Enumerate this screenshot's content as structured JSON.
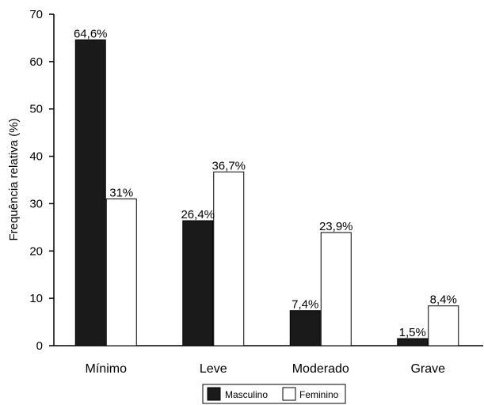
{
  "chart_data": {
    "type": "bar",
    "title": "",
    "xlabel": "",
    "ylabel": "Frequência relativa (%)",
    "ylim": [
      0,
      70
    ],
    "yticks": [
      0,
      10,
      20,
      30,
      40,
      50,
      60,
      70
    ],
    "grid": false,
    "legend_position": "bottom-center",
    "categories": [
      "Mínimo",
      "Leve",
      "Moderado",
      "Grave"
    ],
    "series": [
      {
        "name": "Masculino",
        "color": "#1a1a1a",
        "values": [
          64.6,
          26.4,
          7.4,
          1.5
        ],
        "labels": [
          "64,6%",
          "26,4%",
          "7,4%",
          "1,5%"
        ]
      },
      {
        "name": "Feminino",
        "color": "#ffffff",
        "values": [
          31,
          36.7,
          23.9,
          8.4
        ],
        "labels": [
          "31%",
          "36,7%",
          "23,9%",
          "8,4%"
        ]
      }
    ]
  }
}
